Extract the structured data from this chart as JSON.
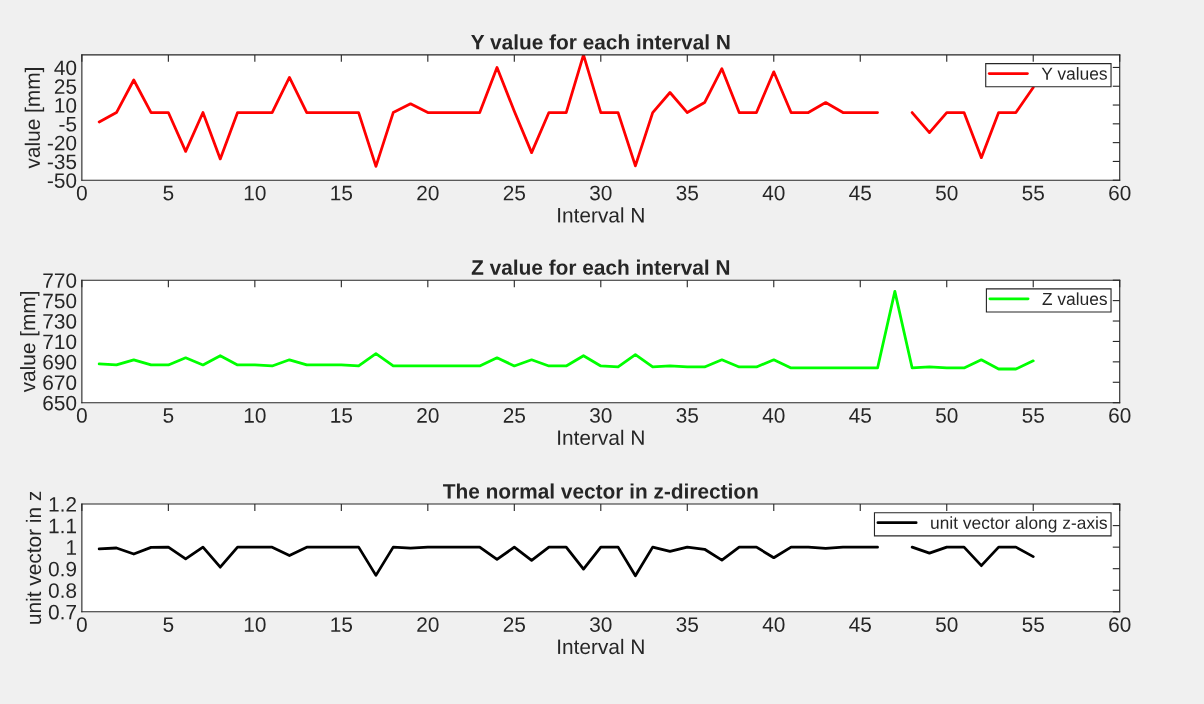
{
  "chart_data": [
    {
      "type": "line",
      "title": "Y value for each interval N",
      "xlabel": "Interval N",
      "ylabel": "value [mm]",
      "x": [
        1,
        2,
        3,
        4,
        5,
        6,
        7,
        8,
        9,
        10,
        11,
        12,
        13,
        14,
        15,
        16,
        17,
        18,
        19,
        20,
        21,
        22,
        23,
        24,
        25,
        26,
        27,
        28,
        29,
        30,
        31,
        32,
        33,
        34,
        35,
        36,
        37,
        38,
        39,
        40,
        41,
        42,
        43,
        44,
        45,
        46,
        47,
        48,
        49,
        50,
        51,
        52,
        53,
        54,
        55
      ],
      "series": [
        {
          "name": "Y values",
          "color": "#ff0000",
          "values": [
            -3.5,
            4,
            30,
            4,
            4,
            -27,
            4,
            -33,
            4,
            4,
            4,
            32,
            4,
            4,
            4,
            4,
            -39,
            4,
            11,
            4,
            4,
            4,
            4,
            40,
            5,
            -28,
            4,
            4,
            50,
            4,
            4,
            -38.5,
            4,
            20,
            4,
            12,
            39,
            4,
            4,
            36.5,
            4,
            4,
            12,
            4,
            4,
            4,
            null,
            4,
            -12,
            4,
            4,
            -32,
            4,
            4,
            24
          ]
        }
      ],
      "xlim": [
        0,
        60
      ],
      "xticks": [
        0,
        5,
        10,
        15,
        20,
        25,
        30,
        35,
        40,
        45,
        50,
        55,
        60
      ],
      "ylim": [
        -50,
        50
      ],
      "yticks": [
        -50,
        -35,
        -20,
        -5,
        10,
        25,
        40
      ],
      "legend": "top right",
      "line_style": "solid"
    },
    {
      "type": "line",
      "title": "Z value for each interval N",
      "xlabel": "Interval N",
      "ylabel": "value [mm]",
      "x": [
        1,
        2,
        3,
        4,
        5,
        6,
        7,
        8,
        9,
        10,
        11,
        12,
        13,
        14,
        15,
        16,
        17,
        18,
        19,
        20,
        21,
        22,
        23,
        24,
        25,
        26,
        27,
        28,
        29,
        30,
        31,
        32,
        33,
        34,
        35,
        36,
        37,
        38,
        39,
        40,
        41,
        42,
        43,
        44,
        45,
        46,
        47,
        48,
        49,
        50,
        51,
        52,
        53,
        54,
        55
      ],
      "series": [
        {
          "name": "Z values",
          "color": "#00ff00",
          "values": [
            688,
            687,
            692,
            687,
            687,
            694,
            687,
            696,
            687,
            687,
            686,
            692,
            687,
            687,
            687,
            686,
            698,
            686,
            686,
            686,
            686,
            686,
            686,
            694,
            686,
            692,
            686,
            686,
            696,
            686,
            685,
            697,
            685,
            686,
            685,
            685,
            692,
            685,
            685,
            692,
            684,
            684,
            684,
            684,
            684,
            684,
            759,
            684,
            685,
            684,
            684,
            692,
            683,
            683,
            691
          ]
        }
      ],
      "xlim": [
        0,
        60
      ],
      "xticks": [
        0,
        5,
        10,
        15,
        20,
        25,
        30,
        35,
        40,
        45,
        50,
        55,
        60
      ],
      "ylim": [
        650,
        770
      ],
      "yticks": [
        650,
        670,
        690,
        710,
        730,
        750,
        770
      ],
      "legend": "top right",
      "line_style": "solid"
    },
    {
      "type": "line",
      "title": "The normal vector in z-direction",
      "xlabel": "Interval N",
      "ylabel": "unit vector in z",
      "x": [
        1,
        2,
        3,
        4,
        5,
        6,
        7,
        8,
        9,
        10,
        11,
        12,
        13,
        14,
        15,
        16,
        17,
        18,
        19,
        20,
        21,
        22,
        23,
        24,
        25,
        26,
        27,
        28,
        29,
        30,
        31,
        32,
        33,
        34,
        35,
        36,
        37,
        38,
        39,
        40,
        41,
        42,
        43,
        44,
        45,
        46,
        47,
        48,
        49,
        50,
        51,
        52,
        53,
        54,
        55
      ],
      "series": [
        {
          "name": "unit vector along z-axis",
          "color": "#000000",
          "values": [
            0.992,
            0.996,
            0.968,
            0.999,
            1.0,
            0.946,
            1.0,
            0.907,
            1.0,
            1.0,
            1.0,
            0.961,
            1.0,
            1.0,
            1.0,
            1.0,
            0.869,
            1.0,
            0.995,
            1.0,
            1.0,
            1.0,
            1.0,
            0.943,
            1.0,
            0.939,
            1.0,
            1.0,
            0.898,
            1.0,
            1.0,
            0.867,
            1.0,
            0.98,
            1.0,
            0.99,
            0.94,
            1.0,
            1.0,
            0.951,
            1.0,
            1.0,
            0.994,
            1.0,
            1.0,
            1.0,
            null,
            1.0,
            0.972,
            1.0,
            1.0,
            0.914,
            1.0,
            1.0,
            0.956
          ]
        }
      ],
      "xlim": [
        0,
        60
      ],
      "xticks": [
        0,
        5,
        10,
        15,
        20,
        25,
        30,
        35,
        40,
        45,
        50,
        55,
        60
      ],
      "ylim": [
        0.7,
        1.2
      ],
      "yticks": [
        {
          "value": 0.7,
          "label": "0.7"
        },
        {
          "value": 0.8,
          "label": "0.8"
        },
        {
          "value": 0.9,
          "label": "0.9"
        },
        1,
        {
          "value": 1.1,
          "label": "1.1"
        },
        {
          "value": 1.2,
          "label": "1.2"
        }
      ],
      "legend": "top right",
      "line_style": "solid"
    }
  ]
}
